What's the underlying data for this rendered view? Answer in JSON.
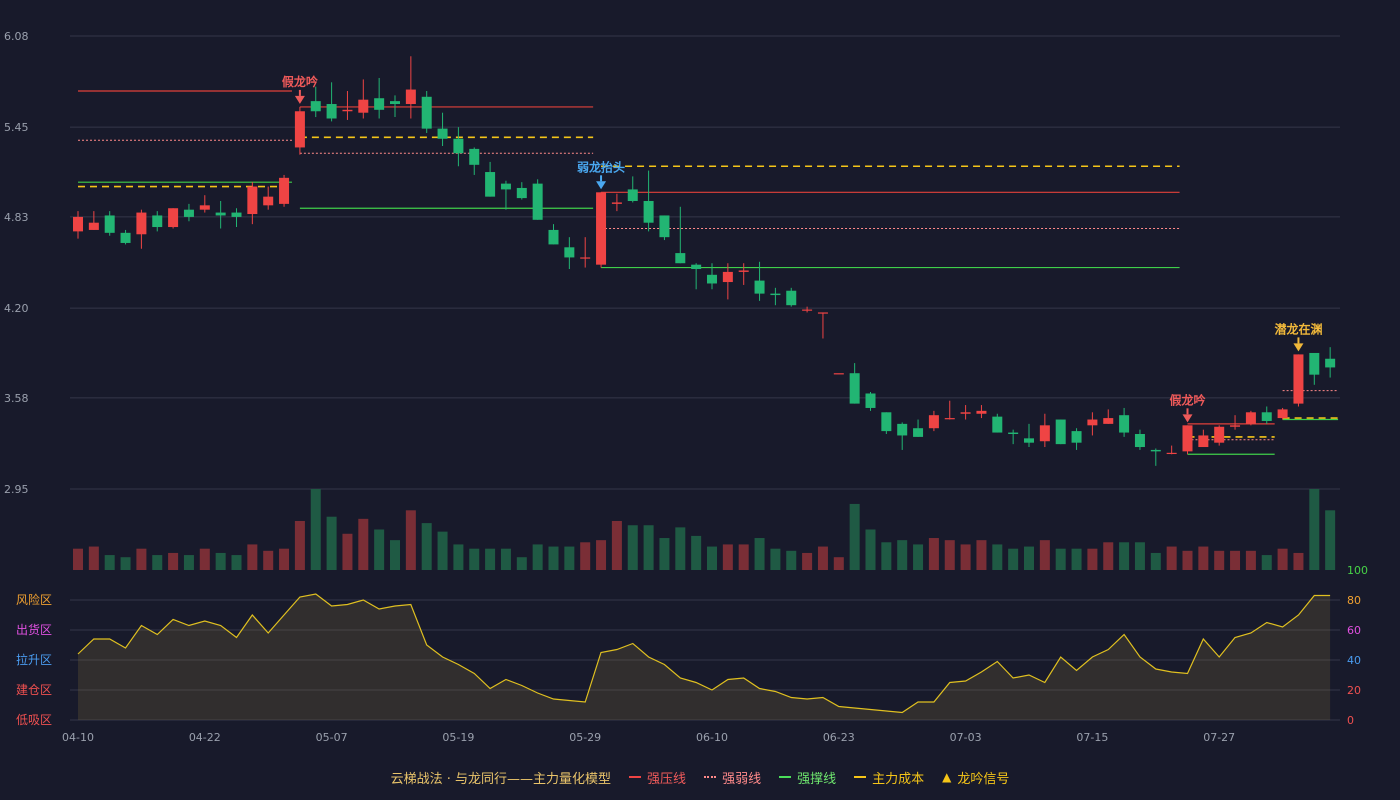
{
  "chart_data": {
    "type": "candlestick",
    "price_axis": {
      "ticks": [
        "6.08",
        "5.45",
        "4.83",
        "4.20",
        "3.58",
        "2.95"
      ]
    },
    "x_ticks": [
      "04-10",
      "04-22",
      "05-07",
      "05-19",
      "05-29",
      "06-10",
      "06-23",
      "07-03",
      "07-15",
      "07-27"
    ],
    "candles": [
      [
        4.73,
        4.83,
        4.87,
        4.68
      ],
      [
        4.74,
        4.79,
        4.87,
        4.74
      ],
      [
        4.84,
        4.72,
        4.87,
        4.7
      ],
      [
        4.72,
        4.65,
        4.74,
        4.64
      ],
      [
        4.71,
        4.86,
        4.88,
        4.61
      ],
      [
        4.84,
        4.76,
        4.87,
        4.73
      ],
      [
        4.76,
        4.89,
        4.89,
        4.75
      ],
      [
        4.88,
        4.83,
        4.92,
        4.8
      ],
      [
        4.88,
        4.91,
        4.98,
        4.86
      ],
      [
        4.86,
        4.84,
        4.94,
        4.75
      ],
      [
        4.86,
        4.83,
        4.89,
        4.76
      ],
      [
        4.85,
        5.04,
        5.07,
        4.78
      ],
      [
        4.91,
        4.97,
        5.04,
        4.88
      ],
      [
        4.92,
        5.1,
        5.12,
        4.9
      ],
      [
        5.31,
        5.56,
        5.59,
        5.26
      ],
      [
        5.63,
        5.56,
        5.73,
        5.52
      ],
      [
        5.61,
        5.51,
        5.76,
        5.49
      ],
      [
        5.56,
        5.57,
        5.7,
        5.5
      ],
      [
        5.55,
        5.64,
        5.78,
        5.51
      ],
      [
        5.65,
        5.57,
        5.79,
        5.51
      ],
      [
        5.63,
        5.61,
        5.67,
        5.52
      ],
      [
        5.61,
        5.71,
        5.94,
        5.51
      ],
      [
        5.66,
        5.44,
        5.7,
        5.41
      ],
      [
        5.44,
        5.37,
        5.55,
        5.32
      ],
      [
        5.37,
        5.27,
        5.45,
        5.18
      ],
      [
        5.3,
        5.19,
        5.31,
        5.12
      ],
      [
        5.14,
        4.97,
        5.21,
        4.97
      ],
      [
        5.06,
        5.02,
        5.08,
        4.88
      ],
      [
        5.03,
        4.96,
        5.07,
        4.95
      ],
      [
        5.06,
        4.81,
        5.09,
        4.81
      ],
      [
        4.74,
        4.64,
        4.78,
        4.64
      ],
      [
        4.62,
        4.55,
        4.69,
        4.47
      ],
      [
        4.55,
        4.55,
        4.69,
        4.48
      ],
      [
        4.5,
        5.0,
        5.0,
        4.48
      ],
      [
        4.92,
        4.93,
        4.99,
        4.87
      ],
      [
        5.02,
        4.94,
        5.11,
        4.93
      ],
      [
        4.94,
        4.79,
        5.15,
        4.73
      ],
      [
        4.84,
        4.69,
        4.84,
        4.67
      ],
      [
        4.58,
        4.51,
        4.9,
        4.51
      ],
      [
        4.5,
        4.47,
        4.51,
        4.33
      ],
      [
        4.43,
        4.37,
        4.51,
        4.33
      ],
      [
        4.38,
        4.45,
        4.51,
        4.26
      ],
      [
        4.45,
        4.46,
        4.51,
        4.36
      ],
      [
        4.39,
        4.3,
        4.52,
        4.25
      ],
      [
        4.3,
        4.29,
        4.34,
        4.22
      ],
      [
        4.32,
        4.22,
        4.34,
        4.21
      ],
      [
        4.19,
        4.19,
        4.21,
        4.17
      ],
      [
        4.17,
        4.17,
        4.17,
        3.99
      ],
      [
        3.75,
        3.75,
        3.75,
        3.75
      ],
      [
        3.75,
        3.54,
        3.82,
        3.54
      ],
      [
        3.61,
        3.51,
        3.62,
        3.49
      ],
      [
        3.48,
        3.35,
        3.48,
        3.33
      ],
      [
        3.4,
        3.32,
        3.41,
        3.22
      ],
      [
        3.37,
        3.31,
        3.43,
        3.31
      ],
      [
        3.37,
        3.46,
        3.49,
        3.35
      ],
      [
        3.44,
        3.44,
        3.56,
        3.43
      ],
      [
        3.47,
        3.48,
        3.53,
        3.43
      ],
      [
        3.47,
        3.49,
        3.53,
        3.44
      ],
      [
        3.45,
        3.34,
        3.47,
        3.34
      ],
      [
        3.34,
        3.33,
        3.36,
        3.26
      ],
      [
        3.3,
        3.27,
        3.4,
        3.24
      ],
      [
        3.28,
        3.39,
        3.47,
        3.24
      ],
      [
        3.43,
        3.26,
        3.43,
        3.26
      ],
      [
        3.35,
        3.27,
        3.37,
        3.22
      ],
      [
        3.39,
        3.43,
        3.48,
        3.32
      ],
      [
        3.4,
        3.44,
        3.5,
        3.4
      ],
      [
        3.46,
        3.34,
        3.51,
        3.31
      ],
      [
        3.33,
        3.24,
        3.36,
        3.22
      ],
      [
        3.22,
        3.21,
        3.23,
        3.11
      ],
      [
        3.2,
        3.2,
        3.25,
        3.19
      ],
      [
        3.21,
        3.39,
        3.39,
        3.19
      ],
      [
        3.24,
        3.32,
        3.36,
        3.25
      ],
      [
        3.27,
        3.38,
        3.39,
        3.25
      ],
      [
        3.38,
        3.39,
        3.46,
        3.36
      ],
      [
        3.4,
        3.48,
        3.49,
        3.39
      ],
      [
        3.48,
        3.42,
        3.52,
        3.4
      ],
      [
        3.44,
        3.5,
        3.51,
        3.43
      ],
      [
        3.54,
        3.88,
        3.88,
        3.52
      ],
      [
        3.89,
        3.74,
        3.88,
        3.67
      ],
      [
        3.85,
        3.79,
        3.93,
        3.72
      ]
    ],
    "volume": [
      10,
      11,
      7,
      6,
      10,
      7,
      8,
      7,
      10,
      8,
      7,
      12,
      9,
      10,
      23,
      38,
      25,
      17,
      24,
      19,
      14,
      28,
      22,
      18,
      12,
      10,
      10,
      10,
      6,
      12,
      11,
      11,
      13,
      14,
      23,
      21,
      21,
      15,
      20,
      16,
      11,
      12,
      12,
      15,
      10,
      9,
      8,
      11,
      6,
      31,
      19,
      13,
      14,
      12,
      15,
      14,
      12,
      14,
      12,
      10,
      11,
      14,
      10,
      10,
      10,
      13,
      13,
      13,
      8,
      11,
      9,
      11,
      9,
      9,
      9,
      7,
      10,
      8,
      38,
      28
    ],
    "oscillator": {
      "ticks": [
        "100",
        "80",
        "60",
        "40",
        "20",
        "0"
      ],
      "zones": [
        "风险区",
        "出货区",
        "拉升区",
        "建仓区",
        "低吸区"
      ],
      "values": [
        44,
        54,
        54,
        48,
        63,
        57,
        67,
        63,
        66,
        63,
        55,
        70,
        58,
        70,
        82,
        84,
        76,
        77,
        80,
        74,
        76,
        77,
        50,
        42,
        37,
        31,
        21,
        27,
        23,
        18,
        14,
        13,
        12,
        45,
        47,
        51,
        42,
        37,
        28,
        25,
        20,
        27,
        28,
        21,
        19,
        15,
        14,
        15,
        9,
        8,
        7,
        6,
        5,
        12,
        12,
        25,
        26,
        32,
        39,
        28,
        30,
        25,
        42,
        33,
        42,
        47,
        57,
        42,
        34,
        32,
        31,
        54,
        42,
        55,
        58,
        65,
        62,
        70,
        83,
        83
      ]
    },
    "levels": [
      {
        "kind": "strong_pressure",
        "x0": 0,
        "x1": 13.5,
        "y": 5.7
      },
      {
        "kind": "strong_weak",
        "x0": 0,
        "x1": 13.5,
        "y": 5.36
      },
      {
        "kind": "strong_support",
        "x0": 0,
        "x1": 13.5,
        "y": 5.07
      },
      {
        "kind": "main_cost",
        "x0": 0,
        "x1": 13.5,
        "y": 5.04
      },
      {
        "kind": "strong_pressure",
        "x0": 14,
        "x1": 32.5,
        "y": 5.59
      },
      {
        "kind": "strong_weak",
        "x0": 14,
        "x1": 32.5,
        "y": 5.27
      },
      {
        "kind": "main_cost",
        "x0": 14,
        "x1": 32.5,
        "y": 5.38
      },
      {
        "kind": "strong_support",
        "x0": 14,
        "x1": 32.5,
        "y": 4.89
      },
      {
        "kind": "strong_pressure",
        "x0": 33,
        "x1": 69.5,
        "y": 5.0
      },
      {
        "kind": "strong_weak",
        "x0": 33,
        "x1": 69.5,
        "y": 4.75
      },
      {
        "kind": "main_cost",
        "x0": 33,
        "x1": 69.5,
        "y": 5.18
      },
      {
        "kind": "strong_support",
        "x0": 33,
        "x1": 69.5,
        "y": 4.48
      },
      {
        "kind": "strong_pressure",
        "x0": 70,
        "x1": 75.5,
        "y": 3.4
      },
      {
        "kind": "strong_weak",
        "x0": 70,
        "x1": 75.5,
        "y": 3.29
      },
      {
        "kind": "main_cost",
        "x0": 70,
        "x1": 75.5,
        "y": 3.31
      },
      {
        "kind": "strong_support",
        "x0": 70,
        "x1": 75.5,
        "y": 3.19
      },
      {
        "kind": "strong_weak",
        "x0": 76,
        "x1": 79.5,
        "y": 3.63
      },
      {
        "kind": "main_cost",
        "x0": 76,
        "x1": 79.5,
        "y": 3.44
      },
      {
        "kind": "strong_support",
        "x0": 76,
        "x1": 79.5,
        "y": 3.43
      }
    ],
    "signals": [
      {
        "index": 14,
        "label": "假龙吟",
        "color": "#ef5a5a"
      },
      {
        "index": 33,
        "label": "弱龙抬头",
        "color": "#4aa8f0"
      },
      {
        "index": 70,
        "label": "假龙吟",
        "color": "#ef5a5a"
      },
      {
        "index": 77,
        "label": "潜龙在渊",
        "color": "#f0b83a"
      }
    ],
    "legend": {
      "title": "云梯战法 · 与龙同行——主力量化模型",
      "items": [
        {
          "label": "强压线",
          "color": "#ef4444",
          "style": "solid"
        },
        {
          "label": "强弱线",
          "color": "#ff8a8a",
          "style": "dotted"
        },
        {
          "label": "强撑线",
          "color": "#22c55e",
          "style": "solid"
        },
        {
          "label": "主力成本",
          "color": "#f5c518",
          "style": "dashed"
        },
        {
          "label": "龙吟信号",
          "color": "#f5c518",
          "style": "triangle"
        }
      ]
    }
  },
  "colors": {
    "up": "#ef4444",
    "down": "#22b573",
    "grid": "#34374a",
    "axis_text": "#9aa0ad",
    "oscillator_line": "#e0c020",
    "zone_colors": [
      "#f0a030",
      "#e050e0",
      "#4a9cf0",
      "#ef5050",
      "#ef5050"
    ],
    "osc_tick_colors": [
      "#46d246",
      "#f0a030",
      "#e050e0",
      "#4a9cf0",
      "#ef5050",
      "#ef5050"
    ]
  }
}
